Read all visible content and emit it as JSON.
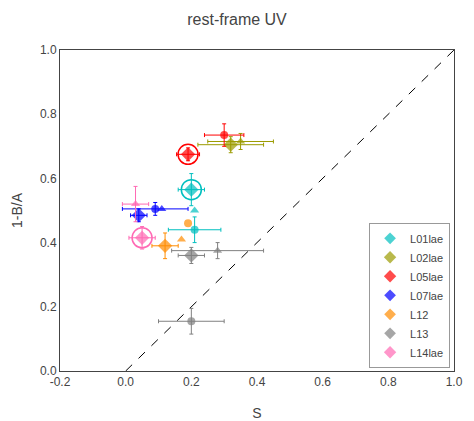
{
  "chart_data": {
    "type": "scatter",
    "title": "rest-frame UV",
    "xlabel": "S",
    "ylabel": "1-B/A",
    "xlim": [
      -0.2,
      1.0
    ],
    "ylim": [
      0.0,
      1.0
    ],
    "xticks": [
      -0.2,
      {
        "value": 0.0,
        "label": "0.0"
      },
      0.2,
      0.4,
      0.6,
      0.8,
      {
        "value": 1.0,
        "label": "1.0"
      }
    ],
    "yticks": [
      {
        "value": 0.0,
        "label": "0.0"
      },
      0.2,
      0.4,
      0.6,
      0.8,
      {
        "value": 1.0,
        "label": "1.0"
      }
    ],
    "grid": false,
    "legend": "lower right",
    "reference_line": {
      "x": [
        0.0,
        1.0
      ],
      "y": [
        0.0,
        1.0
      ],
      "color": "#000000",
      "line_style": "dashed"
    },
    "series": [
      {
        "name": "L01lae",
        "color": "#00BFBF",
        "x": [
          0.2,
          0.21,
          0.21
        ],
        "values": [
          0.565,
          0.44,
          0.5
        ],
        "xerr": [
          0.04,
          0.08,
          0.0
        ],
        "yerr": [
          0.05,
          0.04,
          0.0
        ],
        "marker": [
          "diamond",
          "circle",
          "triangle-up"
        ],
        "circled": [
          true,
          false,
          false
        ]
      },
      {
        "name": "L02lae",
        "color": "#9B9B00",
        "x": [
          0.32,
          0.35
        ],
        "values": [
          0.705,
          0.715
        ],
        "xerr": [
          0.1,
          0.1
        ],
        "yerr": [
          0.025,
          0.025
        ],
        "marker": [
          "diamond",
          "triangle-up"
        ],
        "circled": [
          false,
          false
        ]
      },
      {
        "name": "L05lae",
        "color": "#FF0000",
        "x": [
          0.19,
          0.3
        ],
        "values": [
          0.675,
          0.735
        ],
        "xerr": [
          0.035,
          0.06
        ],
        "yerr": [
          0.02,
          0.035
        ],
        "marker": [
          "diamond",
          "circle"
        ],
        "circled": [
          true,
          false
        ]
      },
      {
        "name": "L07lae",
        "color": "#0000FF",
        "x": [
          0.04,
          0.09,
          0.11
        ],
        "values": [
          0.485,
          0.505,
          0.505
        ],
        "xerr": [
          0.025,
          0.1,
          0.0
        ],
        "yerr": [
          0.02,
          0.02,
          0.0
        ],
        "marker": [
          "diamond",
          "circle",
          "triangle-up"
        ],
        "circled": [
          false,
          false,
          false
        ]
      },
      {
        "name": "L12",
        "color": "#FF8C00",
        "x": [
          0.12,
          0.19,
          0.17
        ],
        "values": [
          0.39,
          0.46,
          0.41
        ],
        "xerr": [
          0.04,
          0.0,
          0.0
        ],
        "yerr": [
          0.04,
          0.0,
          0.0
        ],
        "marker": [
          "diamond",
          "circle",
          "triangle-up"
        ],
        "circled": [
          false,
          false,
          false
        ]
      },
      {
        "name": "L13",
        "color": "#808080",
        "x": [
          0.2,
          0.2,
          0.28
        ],
        "values": [
          0.36,
          0.155,
          0.375
        ],
        "xerr": [
          0.04,
          0.1,
          0.14
        ],
        "yerr": [
          0.025,
          0.04,
          0.025
        ],
        "marker": [
          "diamond",
          "circle",
          "triangle-up"
        ],
        "circled": [
          false,
          false,
          false
        ]
      },
      {
        "name": "L14lae",
        "color": "#FF69B4",
        "x": [
          0.05,
          0.03
        ],
        "values": [
          0.415,
          0.52
        ],
        "xerr": [
          0.04,
          0.04
        ],
        "yerr": [
          0.035,
          0.055
        ],
        "marker": [
          "diamond",
          "triangle-up"
        ],
        "circled": [
          true,
          false
        ]
      }
    ]
  }
}
